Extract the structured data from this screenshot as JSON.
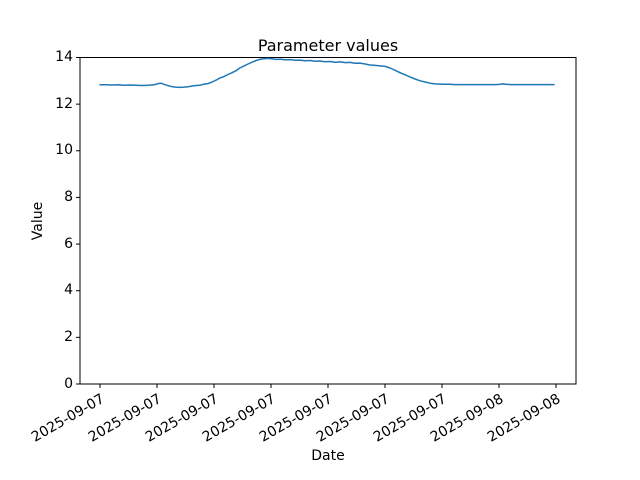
{
  "figure": {
    "background": "#ffffff",
    "text_color": "#000000"
  },
  "chart_data": {
    "type": "line",
    "title": "Parameter values",
    "xlabel": "Date",
    "ylabel": "Value",
    "ylim": [
      0,
      14
    ],
    "yticks": [
      0,
      2,
      4,
      6,
      8,
      10,
      12,
      14
    ],
    "xtick_labels": [
      "2025-09-07",
      "2025-09-07",
      "2025-09-07",
      "2025-09-07",
      "2025-09-07",
      "2025-09-07",
      "2025-09-07",
      "2025-09-08",
      "2025-09-08"
    ],
    "grid": false,
    "legend": null,
    "series": [
      {
        "name": "parameter-values",
        "color": "#1f77b4",
        "x": [
          0,
          0.013,
          0.026,
          0.04,
          0.053,
          0.066,
          0.079,
          0.093,
          0.106,
          0.119,
          0.128,
          0.134,
          0.141,
          0.15,
          0.159,
          0.167,
          0.176,
          0.185,
          0.194,
          0.203,
          0.211,
          0.22,
          0.229,
          0.238,
          0.247,
          0.256,
          0.264,
          0.273,
          0.282,
          0.291,
          0.3,
          0.308,
          0.317,
          0.326,
          0.335,
          0.344,
          0.352,
          0.361,
          0.37,
          0.379,
          0.388,
          0.396,
          0.407,
          0.419,
          0.43,
          0.441,
          0.451,
          0.463,
          0.474,
          0.485,
          0.496,
          0.507,
          0.518,
          0.529,
          0.54,
          0.551,
          0.562,
          0.573,
          0.584,
          0.595,
          0.606,
          0.617,
          0.628,
          0.639,
          0.65,
          0.661,
          0.672,
          0.683,
          0.694,
          0.705,
          0.716,
          0.727,
          0.738,
          0.749,
          0.76,
          0.771,
          0.782,
          0.793,
          0.806,
          0.819,
          0.833,
          0.846,
          0.859,
          0.872,
          0.881,
          0.888,
          0.894,
          0.907,
          0.921,
          0.934,
          0.947,
          0.96,
          0.973,
          0.987,
          1
        ],
        "y": [
          12.83,
          12.83,
          12.82,
          12.83,
          12.81,
          12.82,
          12.81,
          12.8,
          12.81,
          12.83,
          12.88,
          12.9,
          12.85,
          12.79,
          12.75,
          12.73,
          12.72,
          12.73,
          12.75,
          12.78,
          12.8,
          12.81,
          12.86,
          12.88,
          12.95,
          13.03,
          13.12,
          13.18,
          13.27,
          13.35,
          13.44,
          13.55,
          13.63,
          13.72,
          13.8,
          13.87,
          13.92,
          13.95,
          13.96,
          13.94,
          13.92,
          13.93,
          13.9,
          13.91,
          13.88,
          13.89,
          13.86,
          13.87,
          13.84,
          13.85,
          13.82,
          13.83,
          13.8,
          13.81,
          13.78,
          13.79,
          13.75,
          13.76,
          13.72,
          13.68,
          13.66,
          13.64,
          13.62,
          13.55,
          13.45,
          13.35,
          13.26,
          13.17,
          13.08,
          13.0,
          12.95,
          12.9,
          12.87,
          12.86,
          12.85,
          12.85,
          12.84,
          12.84,
          12.84,
          12.84,
          12.84,
          12.84,
          12.84,
          12.84,
          12.85,
          12.87,
          12.85,
          12.84,
          12.84,
          12.84,
          12.84,
          12.84,
          12.84,
          12.84,
          12.84
        ]
      }
    ]
  }
}
